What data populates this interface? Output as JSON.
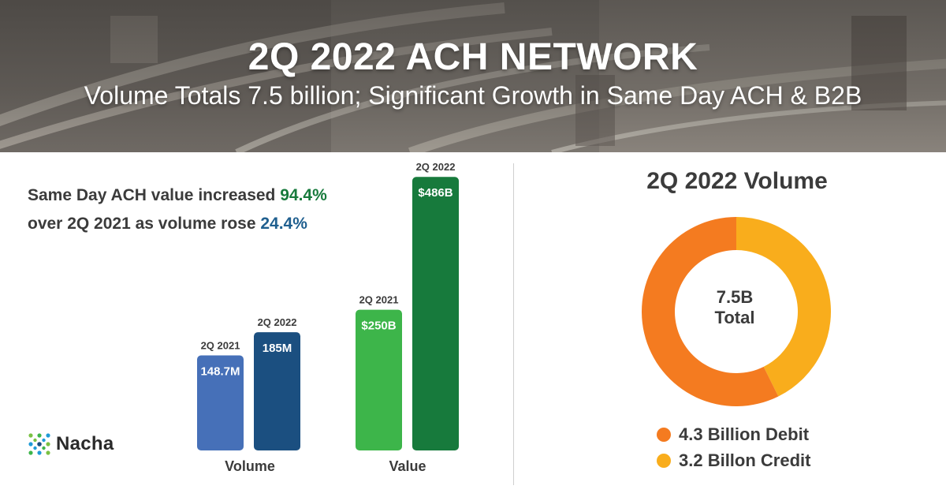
{
  "banner": {
    "title": "2Q 2022 ACH NETWORK",
    "subtitle": "Volume Totals 7.5 billion; Significant Growth in Same Day ACH & B2B"
  },
  "headline": {
    "part1": "Same Day ACH value increased ",
    "value_pct": "94.4%",
    "part2": "over 2Q 2021 as volume rose ",
    "volume_pct": "24.4%"
  },
  "logo": {
    "text": "Nacha"
  },
  "colors": {
    "volume_2021": "#4670b8",
    "volume_2022": "#1b4f80",
    "value_2021": "#3db54a",
    "value_2022": "#177a3c",
    "debit": "#f47b20",
    "credit": "#f9ad1c",
    "headline_green": "#177a3c",
    "headline_blue": "#1f5f8f"
  },
  "donut": {
    "title": "2Q 2022 Volume",
    "center_line1": "7.5B",
    "center_line2": "Total"
  },
  "chart_data": [
    {
      "type": "bar",
      "groups": [
        {
          "label": "Volume",
          "unit": "M",
          "bars": [
            {
              "category": "2Q 2021",
              "value": 148.7,
              "label": "148.7M"
            },
            {
              "category": "2Q 2022",
              "value": 185,
              "label": "185M"
            }
          ]
        },
        {
          "label": "Value",
          "unit": "B",
          "bars": [
            {
              "category": "2Q 2021",
              "value": 250,
              "label": "$250B"
            },
            {
              "category": "2Q 2022",
              "value": 486,
              "label": "$486B"
            }
          ]
        }
      ]
    },
    {
      "type": "pie",
      "title": "2Q 2022 Volume",
      "slices": [
        {
          "name": "Debit",
          "value": 4.3,
          "label": "4.3 Billion Debit"
        },
        {
          "name": "Credit",
          "value": 3.2,
          "label": "3.2 Billon Credit"
        }
      ]
    }
  ]
}
